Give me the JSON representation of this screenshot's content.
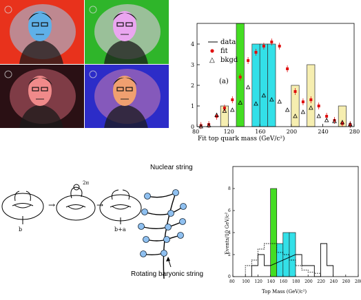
{
  "portrait_panels": [
    {
      "name": "red-tinted",
      "bg": "#e8321c",
      "face": "#5fb0e8",
      "halo": "#9ad0f0"
    },
    {
      "name": "green-tinted",
      "bg": "#2fb52a",
      "face": "#eaa6f0",
      "halo": "#f2c8f4"
    },
    {
      "name": "dark-pink",
      "bg": "#2a1014",
      "face": "#f08a8a",
      "halo": "#c46070"
    },
    {
      "name": "blue-purple",
      "bg": "#2c2cc8",
      "face": "#f0a070",
      "halo": "#d080b0"
    }
  ],
  "chart_top": {
    "legend": {
      "data": "data",
      "fit": "fit",
      "bkgd": "bkgd"
    },
    "panel_label": "(a)",
    "xlabel": "Fit top quark mass (GeV/c²)",
    "x_ticks": [
      "80",
      "120",
      "160",
      "200",
      "240",
      "280"
    ],
    "y_ticks": [
      "0",
      "1",
      "2",
      "3",
      "4"
    ]
  },
  "diagram": {
    "torus_labels": [
      "b",
      "b+a"
    ],
    "nuclear_label": "Nuclear string",
    "rotating_label": "Rotating baryonic string"
  },
  "chart_bottom": {
    "ylabel": "Events/10 GeV/c²",
    "xlabel": "Top Mass (GeV/c²)",
    "x_ticks": [
      "80",
      "100",
      "120",
      "140",
      "160",
      "180",
      "200",
      "220",
      "240",
      "260",
      "280"
    ],
    "y_ticks": [
      "0",
      "2",
      "4",
      "6",
      "8"
    ]
  },
  "chart_data": [
    {
      "type": "bar",
      "title": "",
      "xlabel": "Fit top quark mass (GeV/c²)",
      "ylabel": "",
      "xlim": [
        80,
        280
      ],
      "ylim": [
        0,
        5
      ],
      "bin_width": 10,
      "series": [
        {
          "name": "data",
          "bins": [
            {
              "x": 110,
              "y": 1,
              "color": "#f6eeb0"
            },
            {
              "x": 130,
              "y": 5,
              "color": "#44dd22"
            },
            {
              "x": 150,
              "y": 4,
              "color": "#33e0e8"
            },
            {
              "x": 160,
              "y": 4,
              "color": "#33e0e8"
            },
            {
              "x": 170,
              "y": 4,
              "color": "#33e0e8"
            },
            {
              "x": 200,
              "y": 2,
              "color": "#f6eeb0"
            },
            {
              "x": 220,
              "y": 3,
              "color": "#f6eeb0"
            },
            {
              "x": 260,
              "y": 1,
              "color": "#f6eeb0"
            }
          ]
        },
        {
          "name": "fit",
          "points": [
            [
              85,
              0.05
            ],
            [
              95,
              0.1
            ],
            [
              105,
              0.5
            ],
            [
              115,
              0.9
            ],
            [
              125,
              1.3
            ],
            [
              135,
              2.4
            ],
            [
              145,
              3.2
            ],
            [
              155,
              3.6
            ],
            [
              165,
              3.9
            ],
            [
              175,
              4.1
            ],
            [
              185,
              3.9
            ],
            [
              195,
              2.8
            ],
            [
              205,
              1.7
            ],
            [
              215,
              1.2
            ],
            [
              225,
              1.3
            ],
            [
              235,
              1.0
            ],
            [
              245,
              0.5
            ],
            [
              255,
              0.3
            ],
            [
              265,
              0.15
            ],
            [
              275,
              0.1
            ]
          ]
        },
        {
          "name": "bkgd",
          "points": [
            [
              85,
              0.0
            ],
            [
              95,
              0.05
            ],
            [
              105,
              0.55
            ],
            [
              115,
              0.75
            ],
            [
              125,
              0.8
            ],
            [
              135,
              1.15
            ],
            [
              145,
              1.9
            ],
            [
              155,
              1.1
            ],
            [
              165,
              1.5
            ],
            [
              175,
              1.3
            ],
            [
              185,
              1.2
            ],
            [
              195,
              0.8
            ],
            [
              205,
              0.5
            ],
            [
              215,
              0.7
            ],
            [
              225,
              0.9
            ],
            [
              235,
              0.5
            ],
            [
              245,
              0.3
            ],
            [
              255,
              0.25
            ],
            [
              265,
              0.2
            ],
            [
              275,
              0.1
            ]
          ]
        }
      ]
    },
    {
      "type": "bar",
      "title": "",
      "xlabel": "Top Mass (GeV/c²)",
      "ylabel": "Events/10 GeV/c²",
      "xlim": [
        80,
        280
      ],
      "ylim": [
        0,
        10
      ],
      "bin_width": 10,
      "series": [
        {
          "name": "",
          "bins": [
            {
              "x": 140,
              "y": 8,
              "color": "#44dd22"
            },
            {
              "x": 150,
              "y": 3,
              "color": "#33e0e8"
            },
            {
              "x": 160,
              "y": 4,
              "color": "#33e0e8"
            },
            {
              "x": 170,
              "y": 4,
              "color": "#33e0e8"
            }
          ]
        },
        {
          "name": "",
          "style": "solid-outline",
          "bins": [
            [
              110,
              1
            ],
            [
              120,
              2
            ],
            [
              130,
              1
            ],
            [
              180,
              2
            ],
            [
              190,
              1
            ],
            [
              200,
              1
            ],
            [
              210,
              0
            ],
            [
              220,
              3
            ],
            [
              230,
              1
            ]
          ]
        },
        {
          "name": "",
          "style": "dotted-outline",
          "bins": [
            [
              100,
              1
            ],
            [
              110,
              1.5
            ],
            [
              120,
              2.5
            ],
            [
              130,
              3
            ],
            [
              140,
              3
            ],
            [
              150,
              2.2
            ],
            [
              160,
              2
            ],
            [
              170,
              1.5
            ],
            [
              180,
              1
            ],
            [
              190,
              0.6
            ],
            [
              200,
              0.4
            ],
            [
              210,
              0.3
            ]
          ]
        }
      ]
    }
  ]
}
